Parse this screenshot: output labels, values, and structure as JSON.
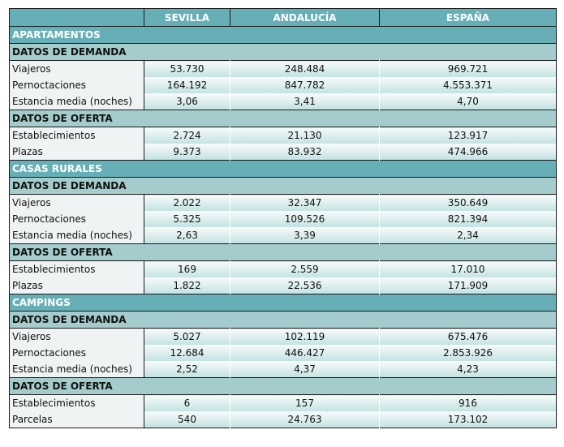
{
  "columns": [
    "SEVILLA",
    "ANDALUCÍA",
    "ESPAÑA"
  ],
  "sections": [
    {
      "title": "APARTAMENTOS",
      "groups": [
        {
          "title": "DATOS DE DEMANDA",
          "rows": [
            {
              "label": "Viajeros",
              "values": [
                "53.730",
                "248.484",
                "969.721"
              ]
            },
            {
              "label": "Pernoctaciones",
              "values": [
                "164.192",
                "847.782",
                "4.553.371"
              ]
            },
            {
              "label": "Estancia media (noches)",
              "values": [
                "3,06",
                "3,41",
                "4,70"
              ]
            }
          ]
        },
        {
          "title": "DATOS DE OFERTA",
          "rows": [
            {
              "label": "Establecimientos",
              "values": [
                "2.724",
                "21.130",
                "123.917"
              ]
            },
            {
              "label": "Plazas",
              "values": [
                "9.373",
                "83.932",
                "474.966"
              ]
            }
          ]
        }
      ]
    },
    {
      "title": "CASAS RURALES",
      "groups": [
        {
          "title": "DATOS DE DEMANDA",
          "rows": [
            {
              "label": "Viajeros",
              "values": [
                "2.022",
                "32.347",
                "350.649"
              ]
            },
            {
              "label": "Pernoctaciones",
              "values": [
                "5.325",
                "109.526",
                "821.394"
              ]
            },
            {
              "label": "Estancia media (noches)",
              "values": [
                "2,63",
                "3,39",
                "2,34"
              ]
            }
          ]
        },
        {
          "title": "DATOS DE OFERTA",
          "rows": [
            {
              "label": "Establecimientos",
              "values": [
                "169",
                "2.559",
                "17.010"
              ]
            },
            {
              "label": "Plazas",
              "values": [
                "1.822",
                "22.536",
                "171.909"
              ]
            }
          ]
        }
      ]
    },
    {
      "title": "CAMPINGS",
      "groups": [
        {
          "title": "DATOS DE DEMANDA",
          "rows": [
            {
              "label": "Viajeros",
              "values": [
                "5.027",
                "102.119",
                "675.476"
              ]
            },
            {
              "label": "Pernoctaciones",
              "values": [
                "12.684",
                "446.427",
                "2.853.926"
              ]
            },
            {
              "label": "Estancia media (noches)",
              "values": [
                "2,52",
                "4,37",
                "4,23"
              ]
            }
          ]
        },
        {
          "title": "DATOS DE OFERTA",
          "rows": [
            {
              "label": "Establecimientos",
              "values": [
                "6",
                "157",
                "916"
              ]
            },
            {
              "label": "Parcelas",
              "values": [
                "540",
                "24.763",
                "173.102"
              ]
            }
          ]
        }
      ]
    }
  ],
  "colors": {
    "header": "#67afb7",
    "subheader": "#a5cccc",
    "label_bg": "#f0f3f3"
  }
}
